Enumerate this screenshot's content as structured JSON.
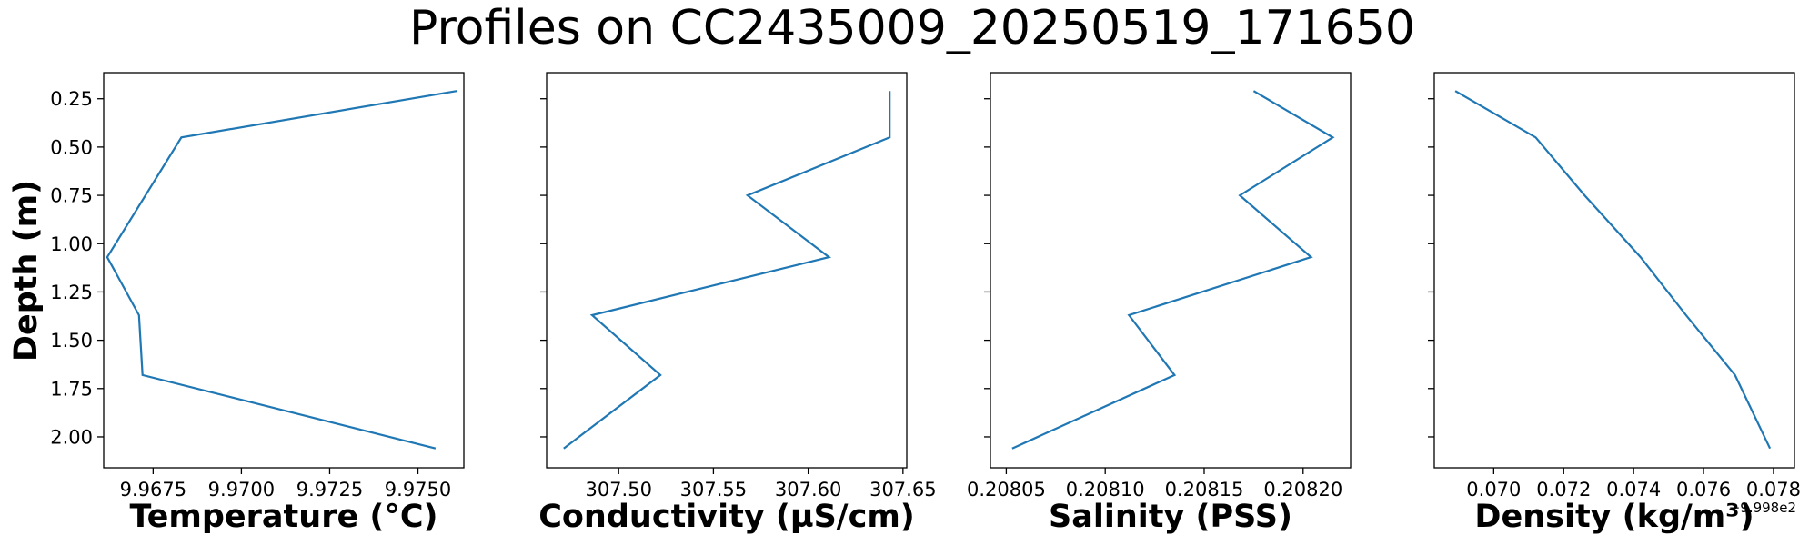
{
  "figure": {
    "title": "Profiles on CC2435009_20250519_171650",
    "ylabel": "Depth (m)"
  },
  "style": {
    "line_color": "#1f77b4"
  },
  "chart_data": [
    {
      "type": "line",
      "xlabel": "Temperature (°C)",
      "xlim": [
        9.9661,
        9.9763
      ],
      "xticks": [
        9.9675,
        9.97,
        9.9725,
        9.975
      ],
      "xtick_labels": [
        "9.9675",
        "9.9700",
        "9.9725",
        "9.9750"
      ],
      "ylim": [
        2.16,
        0.115
      ],
      "yticks": [
        0.25,
        0.5,
        0.75,
        1.0,
        1.25,
        1.5,
        1.75,
        2.0
      ],
      "ytick_labels": [
        "0.25",
        "0.50",
        "0.75",
        "1.00",
        "1.25",
        "1.50",
        "1.75",
        "2.00"
      ],
      "show_ytick_labels": true,
      "series": [
        {
          "x": [
            9.9761,
            9.9683,
            9.9662,
            9.9671,
            9.9672,
            9.9755
          ],
          "y": [
            0.21,
            0.45,
            1.07,
            1.37,
            1.68,
            2.06
          ]
        }
      ]
    },
    {
      "type": "line",
      "xlabel": "Conductivity (µS/cm)",
      "xlim": [
        307.462,
        307.652
      ],
      "xticks": [
        307.5,
        307.55,
        307.6,
        307.65
      ],
      "xtick_labels": [
        "307.50",
        "307.55",
        "307.60",
        "307.65"
      ],
      "ylim": [
        2.16,
        0.115
      ],
      "yticks": [
        0.25,
        0.5,
        0.75,
        1.0,
        1.25,
        1.5,
        1.75,
        2.0
      ],
      "show_ytick_labels": false,
      "series": [
        {
          "x": [
            307.643,
            307.643,
            307.568,
            307.611,
            307.486,
            307.522,
            307.471
          ],
          "y": [
            0.21,
            0.45,
            0.75,
            1.07,
            1.37,
            1.68,
            2.06
          ]
        }
      ]
    },
    {
      "type": "line",
      "xlabel": "Salinity (PSS)",
      "xlim": [
        208.042,
        208.224
      ],
      "xticks": [
        208.05,
        208.1,
        208.15,
        208.2
      ],
      "xtick_labels": [
        "0.20805",
        "0.20810",
        "0.20815",
        "0.20820"
      ],
      "ylim": [
        2.16,
        0.115
      ],
      "yticks": [
        0.25,
        0.5,
        0.75,
        1.0,
        1.25,
        1.5,
        1.75,
        2.0
      ],
      "show_ytick_labels": false,
      "series": [
        {
          "x": [
            208.175,
            208.215,
            208.168,
            208.204,
            208.112,
            208.135,
            208.053
          ],
          "y": [
            0.21,
            0.45,
            0.75,
            1.07,
            1.37,
            1.68,
            2.06
          ]
        }
      ]
    },
    {
      "type": "line",
      "xlabel": "Density (kg/m³)",
      "offset_text": "+9.998e2",
      "xlim": [
        0.0683,
        0.0786
      ],
      "xticks": [
        0.07,
        0.072,
        0.074,
        0.076,
        0.078
      ],
      "xtick_labels": [
        "0.070",
        "0.072",
        "0.074",
        "0.076",
        "0.078"
      ],
      "ylim": [
        2.16,
        0.115
      ],
      "yticks": [
        0.25,
        0.5,
        0.75,
        1.0,
        1.25,
        1.5,
        1.75,
        2.0
      ],
      "show_ytick_labels": false,
      "series": [
        {
          "x": [
            0.0689,
            0.0712,
            0.0726,
            0.0742,
            0.0755,
            0.0769,
            0.0779
          ],
          "y": [
            0.21,
            0.45,
            0.75,
            1.07,
            1.37,
            1.68,
            2.06
          ]
        }
      ]
    }
  ]
}
